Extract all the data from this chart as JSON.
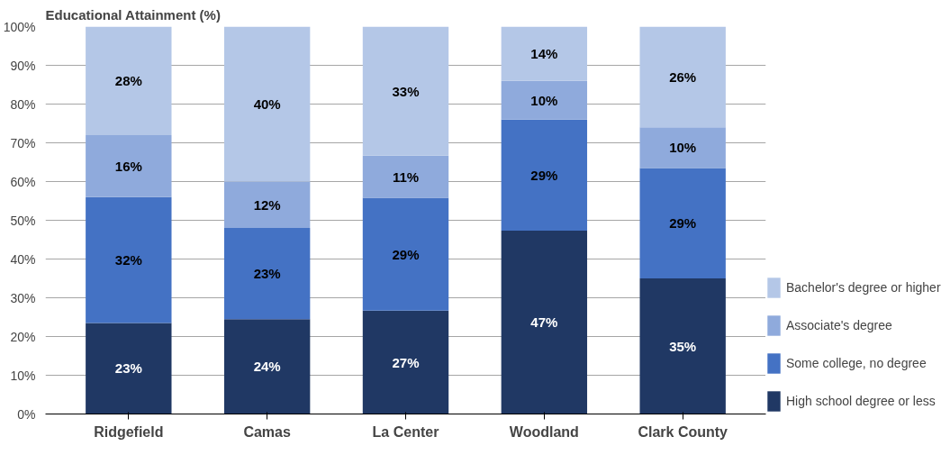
{
  "chart_data": {
    "type": "bar",
    "stacked": true,
    "title": "Educational Attainment (%)",
    "categories": [
      "Ridgefield",
      "Camas",
      "La Center",
      "Woodland",
      "Clark County"
    ],
    "series": [
      {
        "name": "High school degree or less",
        "color": "#203864",
        "values": [
          23.5,
          24.5,
          26.7,
          47.3,
          35
        ],
        "value_labels": [
          "23%",
          "24%",
          "27%",
          "47%",
          "35%"
        ]
      },
      {
        "name": "Some college, no degree",
        "color": "#4472c4",
        "values": [
          32.5,
          23.5,
          29.1,
          28.7,
          28.5
        ],
        "value_labels": [
          "32%",
          "23%",
          "29%",
          "29%",
          "29%"
        ]
      },
      {
        "name": "Associate's degree",
        "color": "#8faadc",
        "values": [
          16,
          12,
          10.9,
          10,
          10.5
        ],
        "value_labels": [
          "16%",
          "12%",
          "11%",
          "10%",
          "10%"
        ]
      },
      {
        "name": "Bachelor's degree or higher",
        "color": "#b4c7e7",
        "values": [
          28,
          40,
          33.3,
          14,
          26
        ],
        "value_labels": [
          "28%",
          "40%",
          "33%",
          "14%",
          "26%"
        ]
      }
    ],
    "ylim": [
      0,
      100
    ],
    "yticks": [
      {
        "value": 0,
        "label": "0%"
      },
      {
        "value": 10,
        "label": "10%"
      },
      {
        "value": 20,
        "label": "20%"
      },
      {
        "value": 30,
        "label": "30%"
      },
      {
        "value": 40,
        "label": "40%"
      },
      {
        "value": 50,
        "label": "50%"
      },
      {
        "value": 60,
        "label": "60%"
      },
      {
        "value": 70,
        "label": "70%"
      },
      {
        "value": 80,
        "label": "80%"
      },
      {
        "value": 90,
        "label": "90%"
      },
      {
        "value": 100,
        "label": "100%"
      }
    ],
    "grid": "y",
    "legend": "right"
  }
}
